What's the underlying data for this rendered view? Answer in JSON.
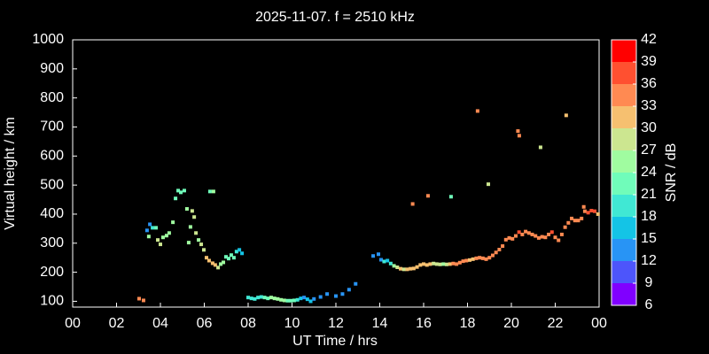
{
  "chart_data": {
    "type": "scatter",
    "title": "2025-11-07. f = 2510 kHz",
    "xlabel": "UT Time / hrs",
    "ylabel": "Virtual height / km",
    "xlim": [
      0,
      24
    ],
    "xticks": [
      {
        "value": 0,
        "label": "00"
      },
      {
        "value": 2,
        "label": "02"
      },
      {
        "value": 4,
        "label": "04"
      },
      {
        "value": 6,
        "label": "06"
      },
      {
        "value": 8,
        "label": "08"
      },
      10,
      12,
      14,
      16,
      18,
      20,
      22,
      {
        "value": 24,
        "label": "00"
      }
    ],
    "ylim": [
      80,
      1000
    ],
    "yticks": [
      100,
      200,
      300,
      400,
      500,
      600,
      700,
      800,
      900,
      1000
    ],
    "colorscale": {
      "label": "SNR / dB",
      "lim": [
        6,
        42
      ],
      "ticks": [
        6,
        9,
        12,
        15,
        18,
        21,
        24,
        27,
        30,
        33,
        36,
        39,
        42
      ],
      "colors": [
        "#8000ff",
        "#4d55fb",
        "#2894f5",
        "#14c4e6",
        "#40e8d4",
        "#70fcba",
        "#a0fca0",
        "#cce690",
        "#f6c070",
        "#ff8a52",
        "#ff5030",
        "#ff0000"
      ]
    },
    "x": [
      3.03,
      3.23,
      3.39,
      3.52,
      3.64,
      3.8,
      3.47,
      3.88,
      4.0,
      4.12,
      4.28,
      4.4,
      4.57,
      4.69,
      4.81,
      4.93,
      5.09,
      5.21,
      5.29,
      5.37,
      5.45,
      5.54,
      5.62,
      5.74,
      5.86,
      5.98,
      6.1,
      6.22,
      6.38,
      6.5,
      6.63,
      6.75,
      6.87,
      6.99,
      7.11,
      7.23,
      7.35,
      7.47,
      7.6,
      7.72,
      6.26,
      6.42,
      8.0,
      8.15,
      8.3,
      8.45,
      8.6,
      8.75,
      8.9,
      9.05,
      9.2,
      9.35,
      9.5,
      9.65,
      9.8,
      9.95,
      10.1,
      10.25,
      10.4,
      10.55,
      10.7,
      10.85,
      11.0,
      11.3,
      11.6,
      12.0,
      12.3,
      12.6,
      12.9,
      13.7,
      13.94,
      14.06,
      14.2,
      14.35,
      14.5,
      14.65,
      14.8,
      14.95,
      15.1,
      15.25,
      15.4,
      15.55,
      15.7,
      15.85,
      16,
      16.15,
      16.3,
      16.45,
      16.6,
      16.75,
      16.9,
      17.05,
      17.2,
      17.35,
      17.5,
      17.65,
      17.8,
      17.95,
      18.1,
      18.25,
      18.4,
      18.55,
      18.7,
      18.85,
      19,
      19.15,
      19.3,
      19.45,
      19.6,
      19.75,
      19.9,
      20.05,
      20.2,
      20.35,
      20.5,
      20.65,
      20.8,
      20.95,
      21.1,
      21.25,
      21.4,
      21.55,
      21.7,
      21.85,
      22,
      22.15,
      22.3,
      22.45,
      22.6,
      22.75,
      22.9,
      23.05,
      23.2,
      23.35,
      23.5,
      23.65,
      23.8,
      23.95,
      15.5,
      16.2,
      17.25,
      18.46,
      18.95,
      20.3,
      20.36,
      21.33,
      22.5,
      23.3
    ],
    "values": [
      109,
      103,
      344,
      365,
      353,
      353,
      323,
      311,
      296,
      320,
      326,
      335,
      372,
      454,
      481,
      475,
      481,
      418,
      302,
      356,
      411,
      390,
      335,
      311,
      296,
      277,
      250,
      240,
      231,
      225,
      216,
      228,
      234,
      253,
      247,
      259,
      250,
      271,
      277,
      265,
      478,
      478,
      113,
      110,
      108,
      113,
      115,
      113,
      110,
      113,
      110,
      108,
      105,
      103,
      102,
      102,
      103,
      105,
      110,
      113,
      107,
      100,
      108,
      115,
      125,
      118,
      125,
      140,
      160,
      256,
      262,
      243,
      237,
      240,
      230,
      222,
      217,
      212,
      210,
      210,
      212,
      213,
      218,
      225,
      228,
      225,
      228,
      230,
      228,
      227,
      228,
      227,
      228,
      230,
      228,
      233,
      238,
      240,
      242,
      245,
      248,
      250,
      248,
      245,
      250,
      258,
      268,
      278,
      290,
      312,
      318,
      315,
      325,
      338,
      330,
      340,
      335,
      330,
      325,
      318,
      322,
      320,
      330,
      338,
      320,
      310,
      330,
      355,
      370,
      385,
      378,
      378,
      385,
      410,
      405,
      412,
      410,
      400,
      435,
      463,
      460,
      755,
      503,
      686,
      670,
      630,
      740,
      425
    ],
    "snr": [
      34,
      34,
      12,
      14,
      20,
      22,
      26,
      27,
      27,
      26,
      25,
      26,
      25,
      22,
      21,
      22,
      21,
      24,
      25,
      26,
      27,
      28,
      27,
      26,
      28,
      29,
      30,
      30,
      30,
      30,
      28,
      25,
      24,
      22,
      23,
      22,
      22,
      19,
      17,
      15,
      22,
      26,
      18,
      19,
      18,
      20,
      18,
      21,
      22,
      24,
      25,
      26,
      25,
      24,
      22,
      23,
      22,
      18,
      15,
      14,
      16,
      15,
      14,
      12,
      12,
      12,
      12,
      12,
      12,
      12,
      12,
      13,
      18,
      17,
      20,
      26,
      28,
      30,
      29,
      30,
      31,
      30,
      30,
      30,
      32,
      30,
      31,
      28,
      27,
      27,
      26,
      28,
      30,
      33,
      33,
      34,
      33,
      33,
      30,
      31,
      33,
      34,
      33,
      34,
      33,
      34,
      34,
      34,
      33,
      35,
      33,
      33,
      35,
      37,
      34,
      35,
      34,
      34,
      33,
      35,
      33,
      34,
      35,
      36,
      34,
      35,
      33,
      35,
      34,
      34,
      35,
      33,
      34,
      35,
      38,
      37,
      38,
      30,
      34,
      34,
      22,
      35,
      29,
      34,
      33,
      27,
      32,
      35
    ]
  }
}
